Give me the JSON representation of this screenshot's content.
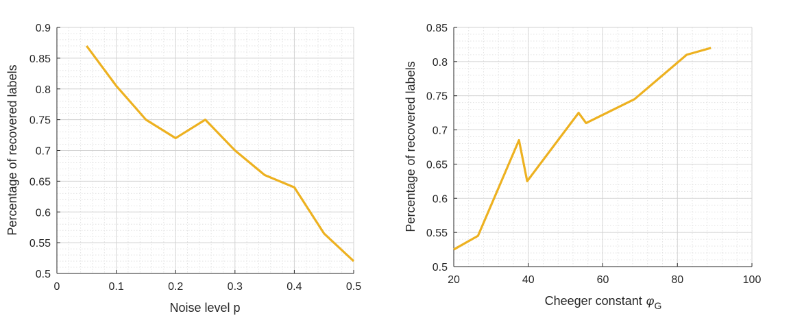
{
  "chart_data": [
    {
      "type": "line",
      "title": "",
      "xlabel": "Noise level p",
      "ylabel": "Percentage of recovered labels",
      "xlim": [
        0,
        0.5
      ],
      "ylim": [
        0.5,
        0.9
      ],
      "xticks": [
        "0",
        "0.1",
        "0.2",
        "0.3",
        "0.4",
        "0.5"
      ],
      "yticks": [
        "0.5",
        "0.55",
        "0.6",
        "0.65",
        "0.7",
        "0.75",
        "0.8",
        "0.85",
        "0.9"
      ],
      "grid": true,
      "line_color": "#EDB120",
      "x": [
        0.05,
        0.1,
        0.15,
        0.2,
        0.25,
        0.3,
        0.35,
        0.4,
        0.45,
        0.5
      ],
      "y": [
        0.87,
        0.805,
        0.75,
        0.72,
        0.75,
        0.7,
        0.66,
        0.64,
        0.565,
        0.52
      ]
    },
    {
      "type": "line",
      "title": "",
      "xlabel": "Cheeger constant",
      "xlabel_symbol": "φ",
      "xlabel_subscript": "G",
      "ylabel": "Percentage of recovered labels",
      "xlim": [
        20,
        100
      ],
      "ylim": [
        0.5,
        0.85
      ],
      "xticks": [
        "20",
        "40",
        "60",
        "80",
        "100"
      ],
      "yticks": [
        "0.5",
        "0.55",
        "0.6",
        "0.65",
        "0.7",
        "0.75",
        "0.8",
        "0.85"
      ],
      "grid": true,
      "line_color": "#EDB120",
      "x": [
        20.0,
        26.5,
        37.5,
        39.7,
        53.5,
        55.5,
        68.5,
        82.5,
        89.0
      ],
      "y": [
        0.525,
        0.545,
        0.685,
        0.625,
        0.725,
        0.71,
        0.745,
        0.81,
        0.82
      ]
    }
  ]
}
